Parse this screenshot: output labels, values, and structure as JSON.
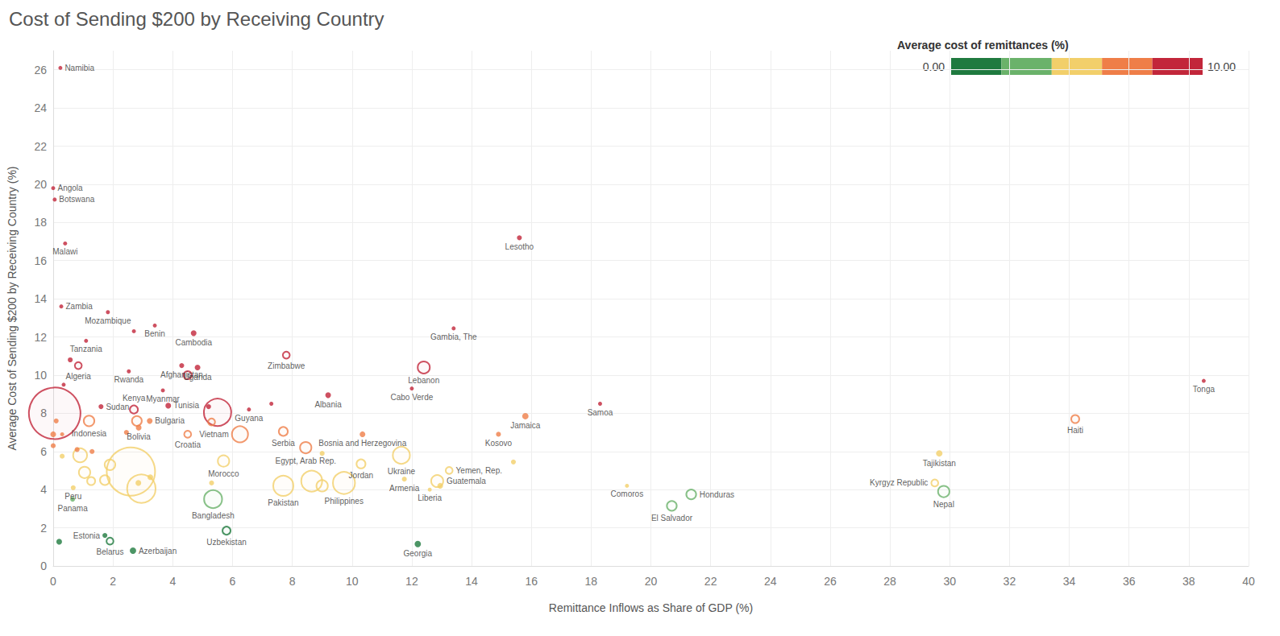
{
  "chart_data": {
    "type": "scatter",
    "title": "Cost of Sending $200 by Receiving Country",
    "x_label": "Remittance Inflows as Share of GDP (%)",
    "y_label": "Average Cost of Sending $200 by Receiving Country (%)",
    "marker": "circle",
    "grid": true,
    "xlim": [
      0,
      40
    ],
    "xticks": [
      0,
      2,
      4,
      6,
      8,
      10,
      12,
      14,
      16,
      18,
      20,
      22,
      24,
      26,
      28,
      30,
      32,
      34,
      36,
      38,
      40
    ],
    "ylim": [
      0,
      27
    ],
    "yticks": [
      0,
      2,
      4,
      6,
      8,
      10,
      12,
      14,
      16,
      18,
      20,
      22,
      24,
      26
    ],
    "color_bar": {
      "title": "Average cost of remittances (%)",
      "range": [
        0,
        10
      ],
      "ticks": [
        {
          "value": 0,
          "label": "0.00"
        },
        {
          "value": 10,
          "label": "10.00"
        }
      ],
      "colors": [
        "#1f7a3f",
        "#6ab26a",
        "#f2cf6a",
        "#ef7e48",
        "#c2263a"
      ]
    },
    "x": [
      0.24,
      0.0,
      0.05,
      0.4,
      0.27,
      1.83,
      3.4,
      2.7,
      1.1,
      0.57,
      0.84,
      0.35,
      2.53,
      4.7,
      4.3,
      4.83,
      4.5,
      3.67,
      7.8,
      13.4,
      15.6,
      12.4,
      12.0,
      9.2,
      2.7,
      1.6,
      3.85,
      5.2,
      5.5,
      0.05,
      6.55,
      7.3,
      2.8,
      3.23,
      2.86,
      2.45,
      1.2,
      4.5,
      5.3,
      6.25,
      7.7,
      10.35,
      14.9,
      15.8,
      18.3,
      38.5,
      34.2,
      29.65,
      29.5,
      29.8,
      21.35,
      20.7,
      19.2,
      12.2,
      13.25,
      12.85,
      12.6,
      12.95,
      15.4,
      11.75,
      11.65,
      10.3,
      9.73,
      9.0,
      8.65,
      7.7,
      8.45,
      9.0,
      5.7,
      5.3,
      5.35,
      5.8,
      2.67,
      1.9,
      1.73,
      0.2,
      0.65,
      0.67,
      1.27,
      1.05,
      2.6,
      2.95,
      2.85,
      3.25,
      1.73,
      1.9,
      0.9,
      0.3,
      0.0,
      0.0,
      0.3,
      0.1,
      0.8,
      1.3
    ],
    "y": [
      26.1,
      19.8,
      19.2,
      16.9,
      13.6,
      13.3,
      12.6,
      12.3,
      11.8,
      10.8,
      10.5,
      9.5,
      10.2,
      12.2,
      10.5,
      10.4,
      10.0,
      9.2,
      11.05,
      12.45,
      17.2,
      10.4,
      9.3,
      8.95,
      8.2,
      8.35,
      8.4,
      8.35,
      8.05,
      8.0,
      8.2,
      8.5,
      7.6,
      7.6,
      7.25,
      7.0,
      7.6,
      6.9,
      7.55,
      6.9,
      7.05,
      6.9,
      6.9,
      7.85,
      8.5,
      9.7,
      7.7,
      5.9,
      4.35,
      3.9,
      3.75,
      3.15,
      4.2,
      1.15,
      5.0,
      4.45,
      4.0,
      4.2,
      5.45,
      4.55,
      5.8,
      5.35,
      4.35,
      4.2,
      4.45,
      4.2,
      6.2,
      5.9,
      5.5,
      4.35,
      3.5,
      1.85,
      0.8,
      1.3,
      1.6,
      1.27,
      3.5,
      4.1,
      4.45,
      4.9,
      4.95,
      4.05,
      4.35,
      4.65,
      4.5,
      5.3,
      5.8,
      5.75,
      6.3,
      6.9,
      6.9,
      7.6,
      6.1,
      6.0
    ],
    "sizes": [
      1,
      1,
      1,
      1,
      1,
      1,
      1,
      1,
      1,
      1.5,
      3,
      1,
      1,
      2,
      1.5,
      2,
      4,
      1,
      3,
      1,
      1.5,
      9,
      1,
      2,
      4,
      1.5,
      2,
      1.5,
      46,
      164,
      1,
      1,
      6,
      2,
      2,
      1.5,
      7,
      3,
      3,
      16,
      5,
      2,
      1.5,
      2.5,
      1,
      1,
      4,
      2.5,
      3,
      8,
      6,
      6,
      1,
      2.5,
      3,
      9,
      1,
      2,
      1.5,
      1.5,
      18,
      5,
      30,
      8,
      27,
      25,
      8,
      1.5,
      8,
      1.5,
      20,
      4,
      2.5,
      3,
      1.5,
      2,
      1.5,
      1.5,
      4,
      8,
      144,
      50,
      2,
      2,
      6,
      7,
      12,
      1.5,
      1.5,
      2,
      1,
      1.5,
      1.5,
      1.5
    ],
    "labels": [
      "Namibia",
      "Angola",
      "Botswana",
      "Malawi",
      "Zambia",
      "Mozambique",
      "Benin",
      null,
      "Tanzania",
      null,
      "Algeria",
      null,
      "Rwanda",
      "Cambodia",
      "Afghanistan",
      "Uganda",
      null,
      "Myanmar",
      "Zimbabwe",
      "Gambia, The",
      "Lesotho",
      "Lebanon",
      "Cabo Verde",
      "Albania",
      "Kenya",
      "Sudan",
      "Tunisia",
      null,
      null,
      null,
      "Guyana",
      null,
      null,
      "Bulgaria",
      "Bolivia",
      null,
      "Indonesia",
      "Croatia",
      null,
      "Vietnam",
      "Serbia",
      "Bosnia and Herzegovina",
      "Kosovo",
      "Jamaica",
      "Samoa",
      "Tonga",
      "Haiti",
      "Tajikistan",
      "Kyrgyz Republic",
      "Nepal",
      "Honduras",
      "El Salvador",
      "Comoros",
      "Georgia",
      "Yemen, Rep.",
      "Guatemala",
      "Liberia",
      null,
      null,
      "Armenia",
      "Ukraine",
      "Jordan",
      "Philippines",
      null,
      null,
      "Pakistan",
      "Egypt, Arab Rep.",
      null,
      "Morocco",
      null,
      "Bangladesh",
      "Uzbekistan",
      "Azerbaijan",
      "Belarus",
      "Estonia",
      null,
      "Panama",
      "Peru",
      null,
      null,
      null,
      null,
      null,
      null,
      null,
      null,
      null,
      null,
      null,
      null,
      null,
      null,
      null,
      null
    ]
  }
}
